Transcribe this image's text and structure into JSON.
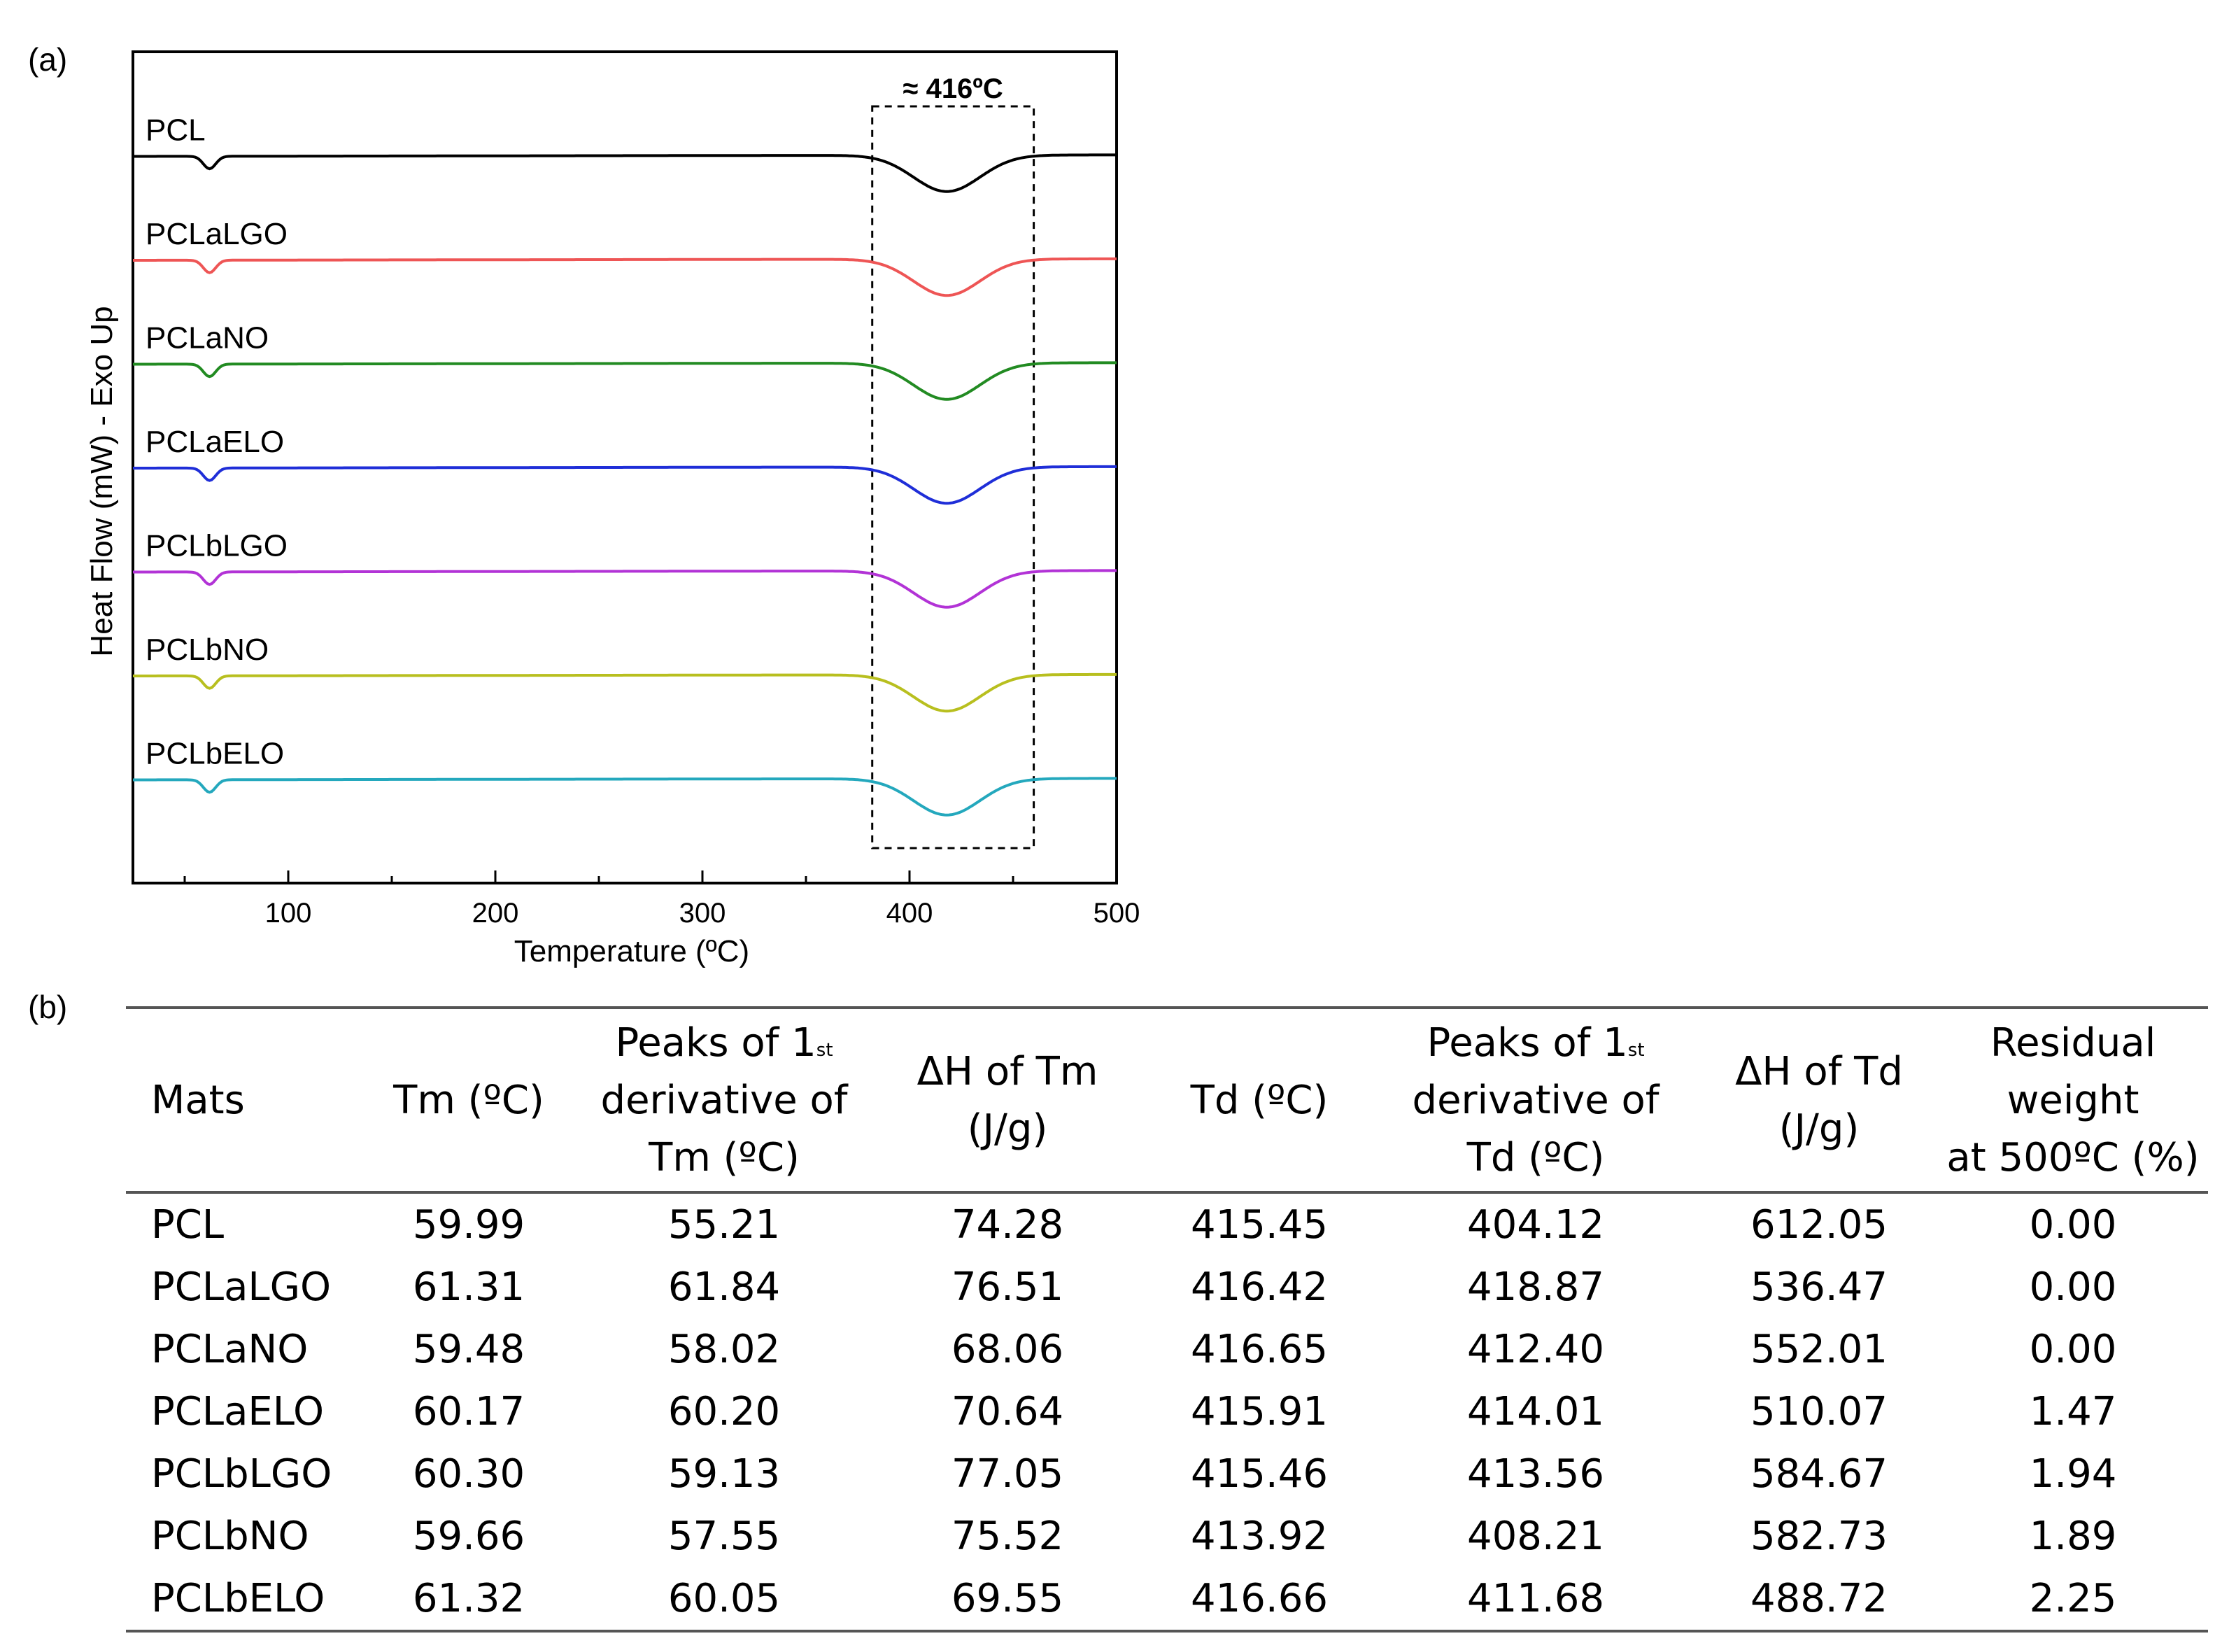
{
  "panel_labels": {
    "a": "(a)",
    "b": "(b)"
  },
  "chart_data": {
    "type": "line",
    "title": "",
    "xlabel": "Temperature (ºC)",
    "ylabel": "Heat Flow (mW) - Exo Up",
    "xlim": [
      25,
      500
    ],
    "xticks": [
      100,
      200,
      300,
      400,
      500
    ],
    "yticks": [],
    "annotation": {
      "text": "≈ 416ºC",
      "x_range": [
        382,
        460
      ],
      "style": "dashed-box"
    },
    "series": [
      {
        "name": "PCL",
        "color": "#000000",
        "baseline": 7.0,
        "melt_x": 62,
        "melt_depth": 0.12,
        "decomp_x": 418,
        "decomp_depth": 0.35
      },
      {
        "name": "PCLaLGO",
        "color": "#ee5555",
        "baseline": 6.0,
        "melt_x": 62,
        "melt_depth": 0.12,
        "decomp_x": 418,
        "decomp_depth": 0.35
      },
      {
        "name": "PCLaNO",
        "color": "#228b22",
        "baseline": 5.0,
        "melt_x": 62,
        "melt_depth": 0.12,
        "decomp_x": 418,
        "decomp_depth": 0.35
      },
      {
        "name": "PCLaELO",
        "color": "#1f2ed8",
        "baseline": 4.0,
        "melt_x": 62,
        "melt_depth": 0.12,
        "decomp_x": 418,
        "decomp_depth": 0.35
      },
      {
        "name": "PCLbLGO",
        "color": "#b233d6",
        "baseline": 3.0,
        "melt_x": 62,
        "melt_depth": 0.12,
        "decomp_x": 418,
        "decomp_depth": 0.35
      },
      {
        "name": "PCLbNO",
        "color": "#b8bf1f",
        "baseline": 2.0,
        "melt_x": 62,
        "melt_depth": 0.12,
        "decomp_x": 418,
        "decomp_depth": 0.35
      },
      {
        "name": "PCLbELO",
        "color": "#24a8bd",
        "baseline": 1.0,
        "melt_x": 62,
        "melt_depth": 0.12,
        "decomp_x": 418,
        "decomp_depth": 0.35
      }
    ]
  },
  "table": {
    "headers": [
      {
        "lines": [
          "Mats"
        ]
      },
      {
        "lines": [
          "Tm (ºC)"
        ]
      },
      {
        "lines": [
          "Peaks of 1",
          "derivative of",
          "Tm (ºC)"
        ],
        "sup": "st"
      },
      {
        "lines": [
          "ΔH of Tm",
          "(J/g)"
        ],
        "delta": true
      },
      {
        "lines": [
          "Td (ºC)"
        ]
      },
      {
        "lines": [
          "Peaks of 1",
          "derivative of",
          "Td (ºC)"
        ],
        "sup": "st"
      },
      {
        "lines": [
          "ΔH of Td",
          "(J/g)"
        ],
        "delta": true
      },
      {
        "lines": [
          "Residual",
          "weight",
          "at 500ºC (%)"
        ]
      }
    ],
    "rows": [
      [
        "PCL",
        "59.99",
        "55.21",
        "74.28",
        "415.45",
        "404.12",
        "612.05",
        "0.00"
      ],
      [
        "PCLaLGO",
        "61.31",
        "61.84",
        "76.51",
        "416.42",
        "418.87",
        "536.47",
        "0.00"
      ],
      [
        "PCLaNO",
        "59.48",
        "58.02",
        "68.06",
        "416.65",
        "412.40",
        "552.01",
        "0.00"
      ],
      [
        "PCLaELO",
        "60.17",
        "60.20",
        "70.64",
        "415.91",
        "414.01",
        "510.07",
        "1.47"
      ],
      [
        "PCLbLGO",
        "60.30",
        "59.13",
        "77.05",
        "415.46",
        "413.56",
        "584.67",
        "1.94"
      ],
      [
        "PCLbNO",
        "59.66",
        "57.55",
        "75.52",
        "413.92",
        "408.21",
        "582.73",
        "1.89"
      ],
      [
        "PCLbELO",
        "61.32",
        "60.05",
        "69.55",
        "416.66",
        "411.68",
        "488.72",
        "2.25"
      ]
    ]
  }
}
